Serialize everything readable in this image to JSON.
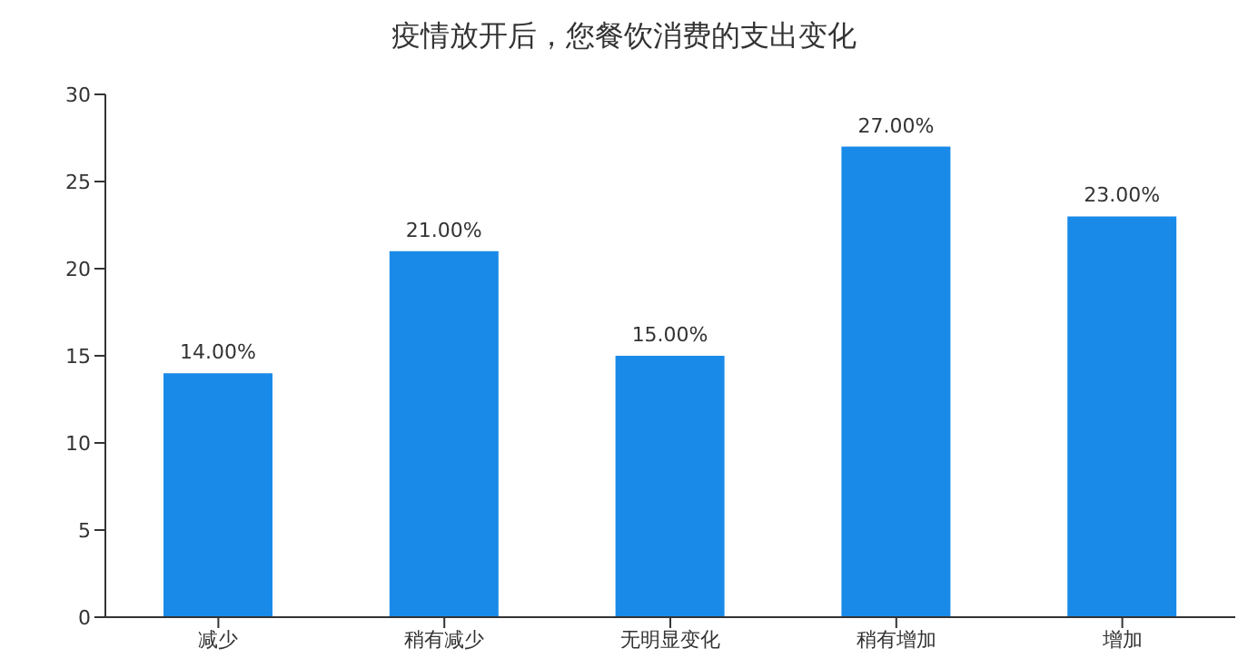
{
  "chart_data": {
    "type": "bar",
    "title": "疫情放开后，您餐饮消费的支出变化",
    "categories": [
      "减少",
      "稍有减少",
      "无明显变化",
      "稍有增加",
      "增加"
    ],
    "values": [
      14,
      21,
      15,
      27,
      23
    ],
    "value_labels": [
      "14.00%",
      "21.00%",
      "15.00%",
      "27.00%",
      "23.00%"
    ],
    "color": "#1a8ae8",
    "ylim": [
      0,
      30
    ],
    "yticks": [
      0,
      5,
      10,
      15,
      20,
      25,
      30
    ],
    "grid": false
  }
}
